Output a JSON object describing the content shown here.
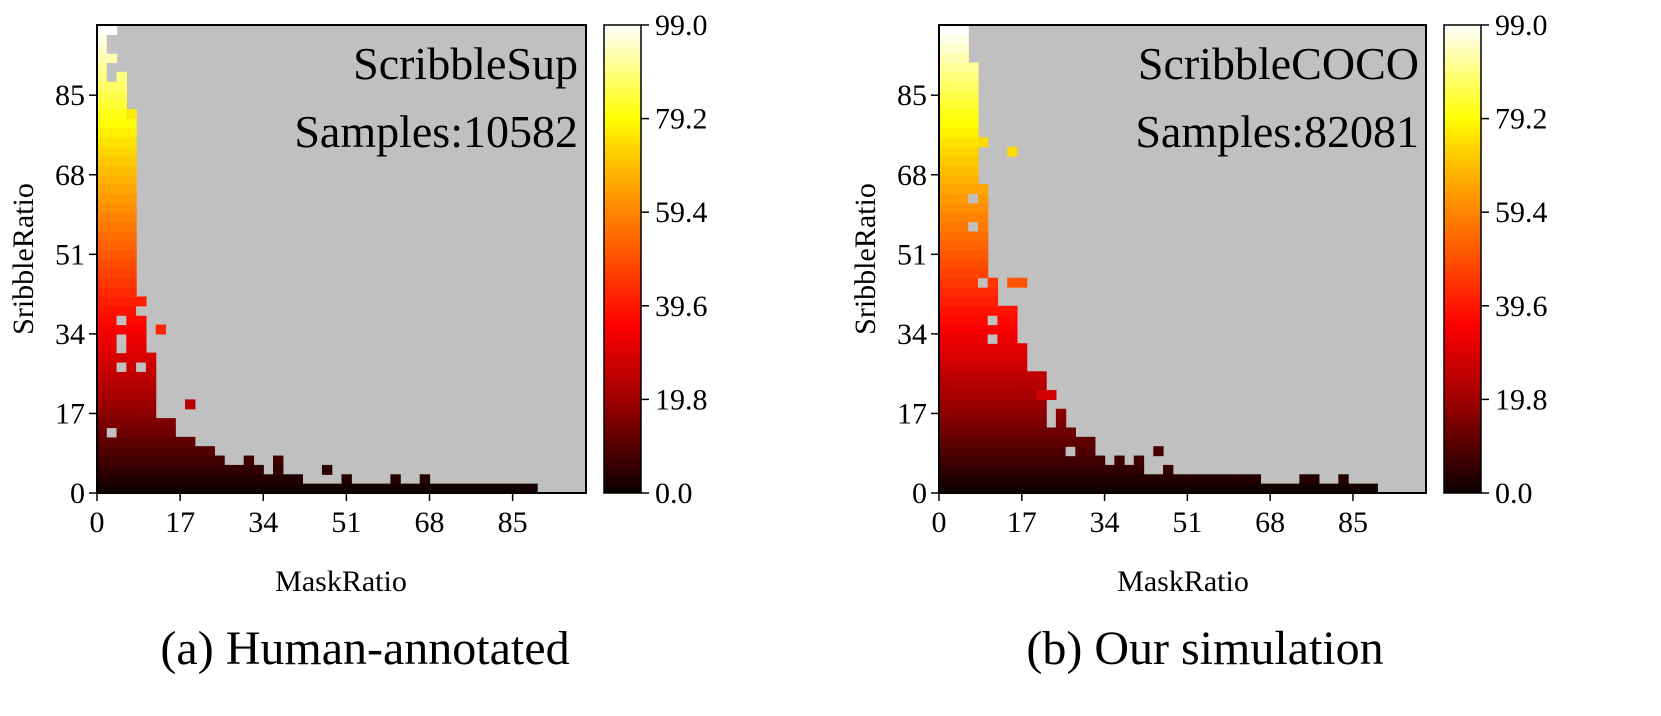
{
  "chart_data": [
    {
      "type": "heatmap",
      "title": "ScribbleSup",
      "annotations": [
        "ScribbleSup",
        "Samples:10582"
      ],
      "caption": "(a) Human-annotated",
      "xlabel": "MaskRatio",
      "ylabel": "SribbleRatio",
      "xlim": [
        0,
        100
      ],
      "ylim": [
        0,
        100
      ],
      "bin_size": 2,
      "xticks": [
        0,
        17,
        34,
        51,
        68,
        85
      ],
      "yticks": [
        0,
        17,
        34,
        51,
        68,
        85
      ],
      "colorbar": {
        "range": [
          0,
          99
        ],
        "ticks": [
          "0.0",
          "19.8",
          "39.6",
          "59.4",
          "79.2",
          "99.0"
        ],
        "colormap": "hot"
      },
      "background_color": "#c0c0c0",
      "columns": [
        {
          "x": 0,
          "ymax": 100
        },
        {
          "x": 2,
          "ymax": 100,
          "gaps": [
            96,
            94,
            90,
            88,
            12
          ]
        },
        {
          "x": 4,
          "ymax": 90,
          "gaps": [
            36,
            32,
            30,
            26
          ]
        },
        {
          "x": 6,
          "ymax": 82
        },
        {
          "x": 8,
          "ymax": 42,
          "gaps": [
            38,
            26
          ]
        },
        {
          "x": 10,
          "ymax": 30
        },
        {
          "x": 12,
          "ymax": 16
        },
        {
          "x": 14,
          "ymax": 16
        },
        {
          "x": 16,
          "ymax": 12
        },
        {
          "x": 18,
          "ymax": 12
        },
        {
          "x": 20,
          "ymax": 10
        },
        {
          "x": 22,
          "ymax": 10
        },
        {
          "x": 24,
          "ymax": 8
        },
        {
          "x": 26,
          "ymax": 6
        },
        {
          "x": 28,
          "ymax": 6
        },
        {
          "x": 30,
          "ymax": 8
        },
        {
          "x": 32,
          "ymax": 6
        },
        {
          "x": 34,
          "ymax": 4
        },
        {
          "x": 36,
          "ymax": 8
        },
        {
          "x": 38,
          "ymax": 4
        },
        {
          "x": 40,
          "ymax": 4
        },
        {
          "x": 42,
          "ymax": 2
        },
        {
          "x": 44,
          "ymax": 2
        },
        {
          "x": 46,
          "ymax": 2
        },
        {
          "x": 48,
          "ymax": 2
        },
        {
          "x": 50,
          "ymax": 4
        },
        {
          "x": 52,
          "ymax": 2
        },
        {
          "x": 54,
          "ymax": 2
        },
        {
          "x": 56,
          "ymax": 2
        },
        {
          "x": 58,
          "ymax": 2
        },
        {
          "x": 60,
          "ymax": 4
        },
        {
          "x": 62,
          "ymax": 2
        },
        {
          "x": 64,
          "ymax": 2
        },
        {
          "x": 66,
          "ymax": 4
        },
        {
          "x": 68,
          "ymax": 2
        },
        {
          "x": 70,
          "ymax": 2
        },
        {
          "x": 72,
          "ymax": 2
        },
        {
          "x": 74,
          "ymax": 2
        },
        {
          "x": 76,
          "ymax": 2
        },
        {
          "x": 78,
          "ymax": 2
        },
        {
          "x": 80,
          "ymax": 2
        },
        {
          "x": 82,
          "ymax": 2
        },
        {
          "x": 84,
          "ymax": 2
        },
        {
          "x": 86,
          "ymax": 2
        },
        {
          "x": 88,
          "ymax": 2
        }
      ],
      "outliers": [
        {
          "x": 6,
          "y": 80,
          "v": 76
        },
        {
          "x": 12,
          "y": 34,
          "v": 42
        },
        {
          "x": 18,
          "y": 18,
          "v": 24
        },
        {
          "x": 46,
          "y": 4,
          "v": 4
        }
      ]
    },
    {
      "type": "heatmap",
      "title": "ScribbleCOCO",
      "annotations": [
        "ScribbleCOCO",
        "Samples:82081"
      ],
      "caption": "(b) Our simulation",
      "xlabel": "MaskRatio",
      "ylabel": "SribbleRatio",
      "xlim": [
        0,
        100
      ],
      "ylim": [
        0,
        100
      ],
      "bin_size": 2,
      "xticks": [
        0,
        17,
        34,
        51,
        68,
        85
      ],
      "yticks": [
        0,
        17,
        34,
        51,
        68,
        85
      ],
      "colorbar": {
        "range": [
          0,
          99
        ],
        "ticks": [
          "0.0",
          "19.8",
          "39.6",
          "59.4",
          "79.2",
          "99.0"
        ],
        "colormap": "hot"
      },
      "background_color": "#c0c0c0",
      "columns": [
        {
          "x": 0,
          "ymax": 100
        },
        {
          "x": 2,
          "ymax": 100
        },
        {
          "x": 4,
          "ymax": 100
        },
        {
          "x": 6,
          "ymax": 92,
          "gaps": [
            62,
            56
          ]
        },
        {
          "x": 8,
          "ymax": 66,
          "gaps": [
            44
          ]
        },
        {
          "x": 10,
          "ymax": 46,
          "gaps": [
            36,
            32
          ]
        },
        {
          "x": 12,
          "ymax": 40
        },
        {
          "x": 14,
          "ymax": 40
        },
        {
          "x": 16,
          "ymax": 32
        },
        {
          "x": 18,
          "ymax": 26
        },
        {
          "x": 20,
          "ymax": 26
        },
        {
          "x": 22,
          "ymax": 14
        },
        {
          "x": 24,
          "ymax": 18
        },
        {
          "x": 26,
          "ymax": 14,
          "gaps": [
            8
          ]
        },
        {
          "x": 28,
          "ymax": 12
        },
        {
          "x": 30,
          "ymax": 12
        },
        {
          "x": 32,
          "ymax": 8
        },
        {
          "x": 34,
          "ymax": 6
        },
        {
          "x": 36,
          "ymax": 8
        },
        {
          "x": 38,
          "ymax": 6
        },
        {
          "x": 40,
          "ymax": 8
        },
        {
          "x": 42,
          "ymax": 4
        },
        {
          "x": 44,
          "ymax": 4
        },
        {
          "x": 46,
          "ymax": 6
        },
        {
          "x": 48,
          "ymax": 4
        },
        {
          "x": 50,
          "ymax": 4
        },
        {
          "x": 52,
          "ymax": 4
        },
        {
          "x": 54,
          "ymax": 4
        },
        {
          "x": 56,
          "ymax": 4
        },
        {
          "x": 58,
          "ymax": 4
        },
        {
          "x": 60,
          "ymax": 4
        },
        {
          "x": 62,
          "ymax": 4
        },
        {
          "x": 64,
          "ymax": 4
        },
        {
          "x": 66,
          "ymax": 2
        },
        {
          "x": 68,
          "ymax": 2
        },
        {
          "x": 70,
          "ymax": 2
        },
        {
          "x": 72,
          "ymax": 2
        },
        {
          "x": 74,
          "ymax": 4
        },
        {
          "x": 76,
          "ymax": 4
        },
        {
          "x": 78,
          "ymax": 2
        },
        {
          "x": 80,
          "ymax": 2
        },
        {
          "x": 82,
          "ymax": 4
        },
        {
          "x": 84,
          "ymax": 2
        },
        {
          "x": 86,
          "ymax": 2
        },
        {
          "x": 88,
          "ymax": 2
        }
      ],
      "outliers": [
        {
          "x": 8,
          "y": 74,
          "v": 74
        },
        {
          "x": 14,
          "y": 72,
          "v": 74
        },
        {
          "x": 14,
          "y": 44,
          "v": 50
        },
        {
          "x": 16,
          "y": 44,
          "v": 50
        },
        {
          "x": 20,
          "y": 20,
          "v": 28
        },
        {
          "x": 22,
          "y": 20,
          "v": 28
        },
        {
          "x": 44,
          "y": 8,
          "v": 8
        }
      ]
    }
  ]
}
